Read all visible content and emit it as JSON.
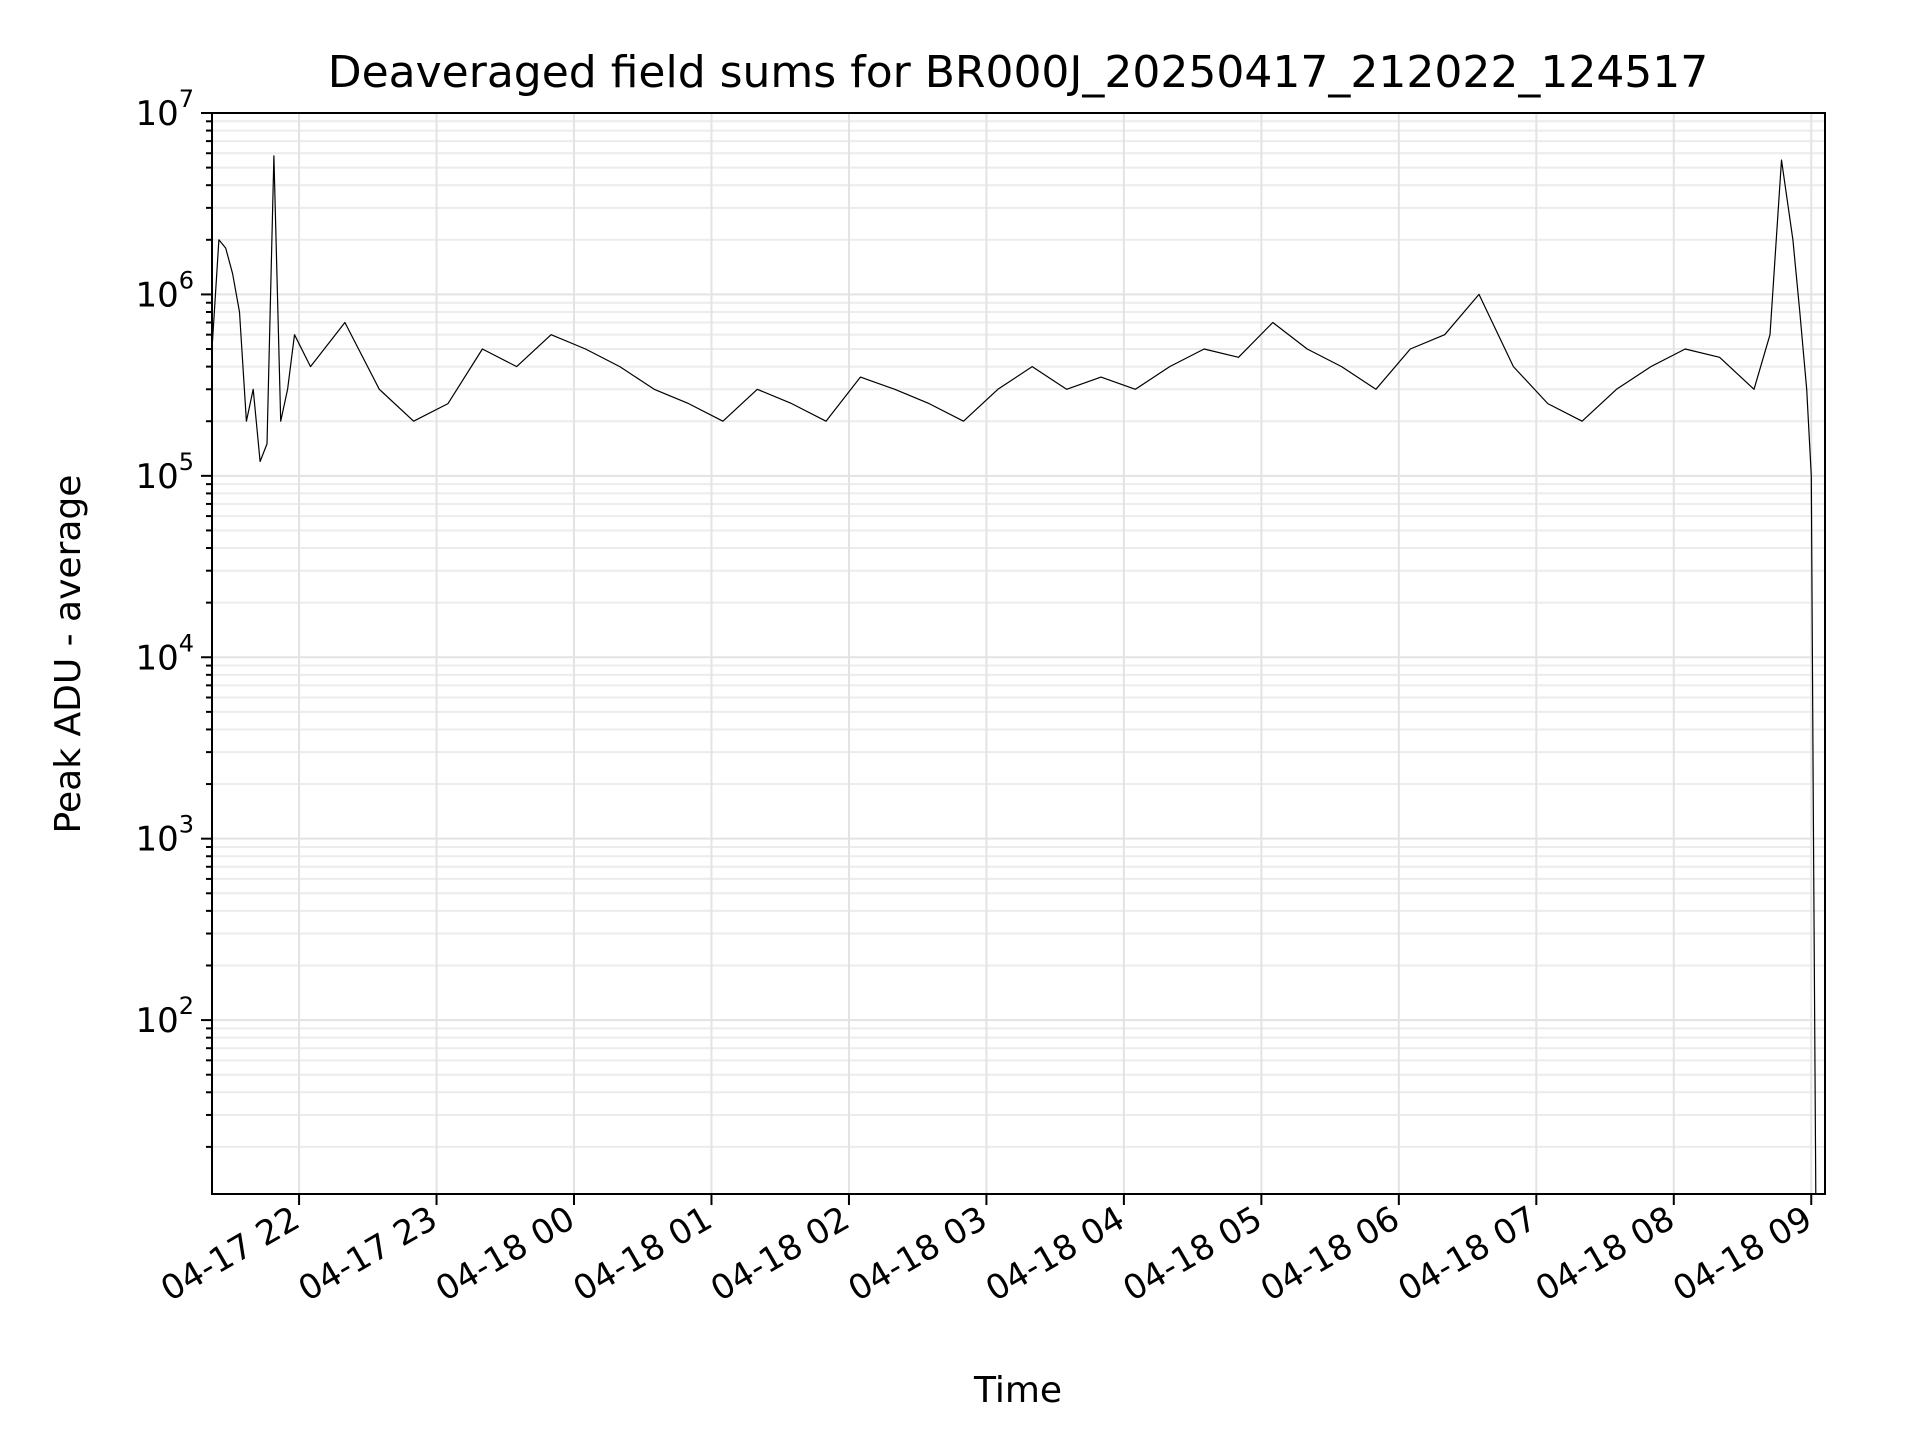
{
  "chart_data": {
    "type": "line",
    "title": "Deaveraged field sums for BR000J_20250417_212022_124517",
    "xlabel": "Time",
    "ylabel": "Peak ADU - average",
    "yscale": "log",
    "grid": true,
    "ylim": [
      11,
      10000000
    ],
    "xlim": [
      "2025-04-17 21:22",
      "2025-04-18 09:06"
    ],
    "x_ticks": [
      {
        "time": "2025-04-17 22:00",
        "label": "04-17 22"
      },
      {
        "time": "2025-04-17 23:00",
        "label": "04-17 23"
      },
      {
        "time": "2025-04-18 00:00",
        "label": "04-18 00"
      },
      {
        "time": "2025-04-18 01:00",
        "label": "04-18 01"
      },
      {
        "time": "2025-04-18 02:00",
        "label": "04-18 02"
      },
      {
        "time": "2025-04-18 03:00",
        "label": "04-18 03"
      },
      {
        "time": "2025-04-18 04:00",
        "label": "04-18 04"
      },
      {
        "time": "2025-04-18 05:00",
        "label": "04-18 05"
      },
      {
        "time": "2025-04-18 06:00",
        "label": "04-18 06"
      },
      {
        "time": "2025-04-18 07:00",
        "label": "04-18 07"
      },
      {
        "time": "2025-04-18 08:00",
        "label": "04-18 08"
      },
      {
        "time": "2025-04-18 09:00",
        "label": "04-18 09"
      }
    ],
    "y_ticks": [
      {
        "value": 100,
        "base": "10",
        "exp": "2"
      },
      {
        "value": 1000,
        "base": "10",
        "exp": "3"
      },
      {
        "value": 10000,
        "base": "10",
        "exp": "4"
      },
      {
        "value": 100000,
        "base": "10",
        "exp": "5"
      },
      {
        "value": 1000000,
        "base": "10",
        "exp": "6"
      },
      {
        "value": 10000000,
        "base": "10",
        "exp": "7"
      }
    ],
    "series": [
      {
        "color": "#000000",
        "x": [
          "2025-04-17 21:22",
          "2025-04-17 21:25",
          "2025-04-17 21:28",
          "2025-04-17 21:31",
          "2025-04-17 21:34",
          "2025-04-17 21:37",
          "2025-04-17 21:40",
          "2025-04-17 21:43",
          "2025-04-17 21:46",
          "2025-04-17 21:49",
          "2025-04-17 21:52",
          "2025-04-17 21:55",
          "2025-04-17 21:58",
          "2025-04-17 22:05",
          "2025-04-17 22:20",
          "2025-04-17 22:35",
          "2025-04-17 22:50",
          "2025-04-17 23:05",
          "2025-04-17 23:20",
          "2025-04-17 23:35",
          "2025-04-17 23:50",
          "2025-04-18 00:05",
          "2025-04-18 00:20",
          "2025-04-18 00:35",
          "2025-04-18 00:50",
          "2025-04-18 01:05",
          "2025-04-18 01:20",
          "2025-04-18 01:35",
          "2025-04-18 01:50",
          "2025-04-18 02:05",
          "2025-04-18 02:20",
          "2025-04-18 02:35",
          "2025-04-18 02:50",
          "2025-04-18 03:05",
          "2025-04-18 03:20",
          "2025-04-18 03:35",
          "2025-04-18 03:50",
          "2025-04-18 04:05",
          "2025-04-18 04:20",
          "2025-04-18 04:35",
          "2025-04-18 04:50",
          "2025-04-18 05:05",
          "2025-04-18 05:20",
          "2025-04-18 05:35",
          "2025-04-18 05:50",
          "2025-04-18 06:05",
          "2025-04-18 06:20",
          "2025-04-18 06:35",
          "2025-04-18 06:50",
          "2025-04-18 07:05",
          "2025-04-18 07:20",
          "2025-04-18 07:35",
          "2025-04-18 07:50",
          "2025-04-18 08:05",
          "2025-04-18 08:20",
          "2025-04-18 08:35",
          "2025-04-18 08:42",
          "2025-04-18 08:47",
          "2025-04-18 08:52",
          "2025-04-18 08:55",
          "2025-04-18 08:58",
          "2025-04-18 09:00",
          "2025-04-18 09:01",
          "2025-04-18 09:02"
        ],
        "y": [
          500000,
          2000000,
          1800000,
          1300000,
          800000,
          200000,
          300000,
          120000,
          150000,
          5800000,
          200000,
          300000,
          600000,
          400000,
          700000,
          300000,
          200000,
          250000,
          500000,
          400000,
          600000,
          500000,
          400000,
          300000,
          250000,
          200000,
          300000,
          250000,
          200000,
          350000,
          300000,
          250000,
          200000,
          300000,
          400000,
          300000,
          350000,
          300000,
          400000,
          500000,
          450000,
          700000,
          500000,
          400000,
          300000,
          500000,
          600000,
          1000000,
          400000,
          250000,
          200000,
          300000,
          400000,
          500000,
          450000,
          300000,
          600000,
          5500000,
          2000000,
          800000,
          300000,
          100000,
          1000,
          11
        ]
      }
    ]
  }
}
